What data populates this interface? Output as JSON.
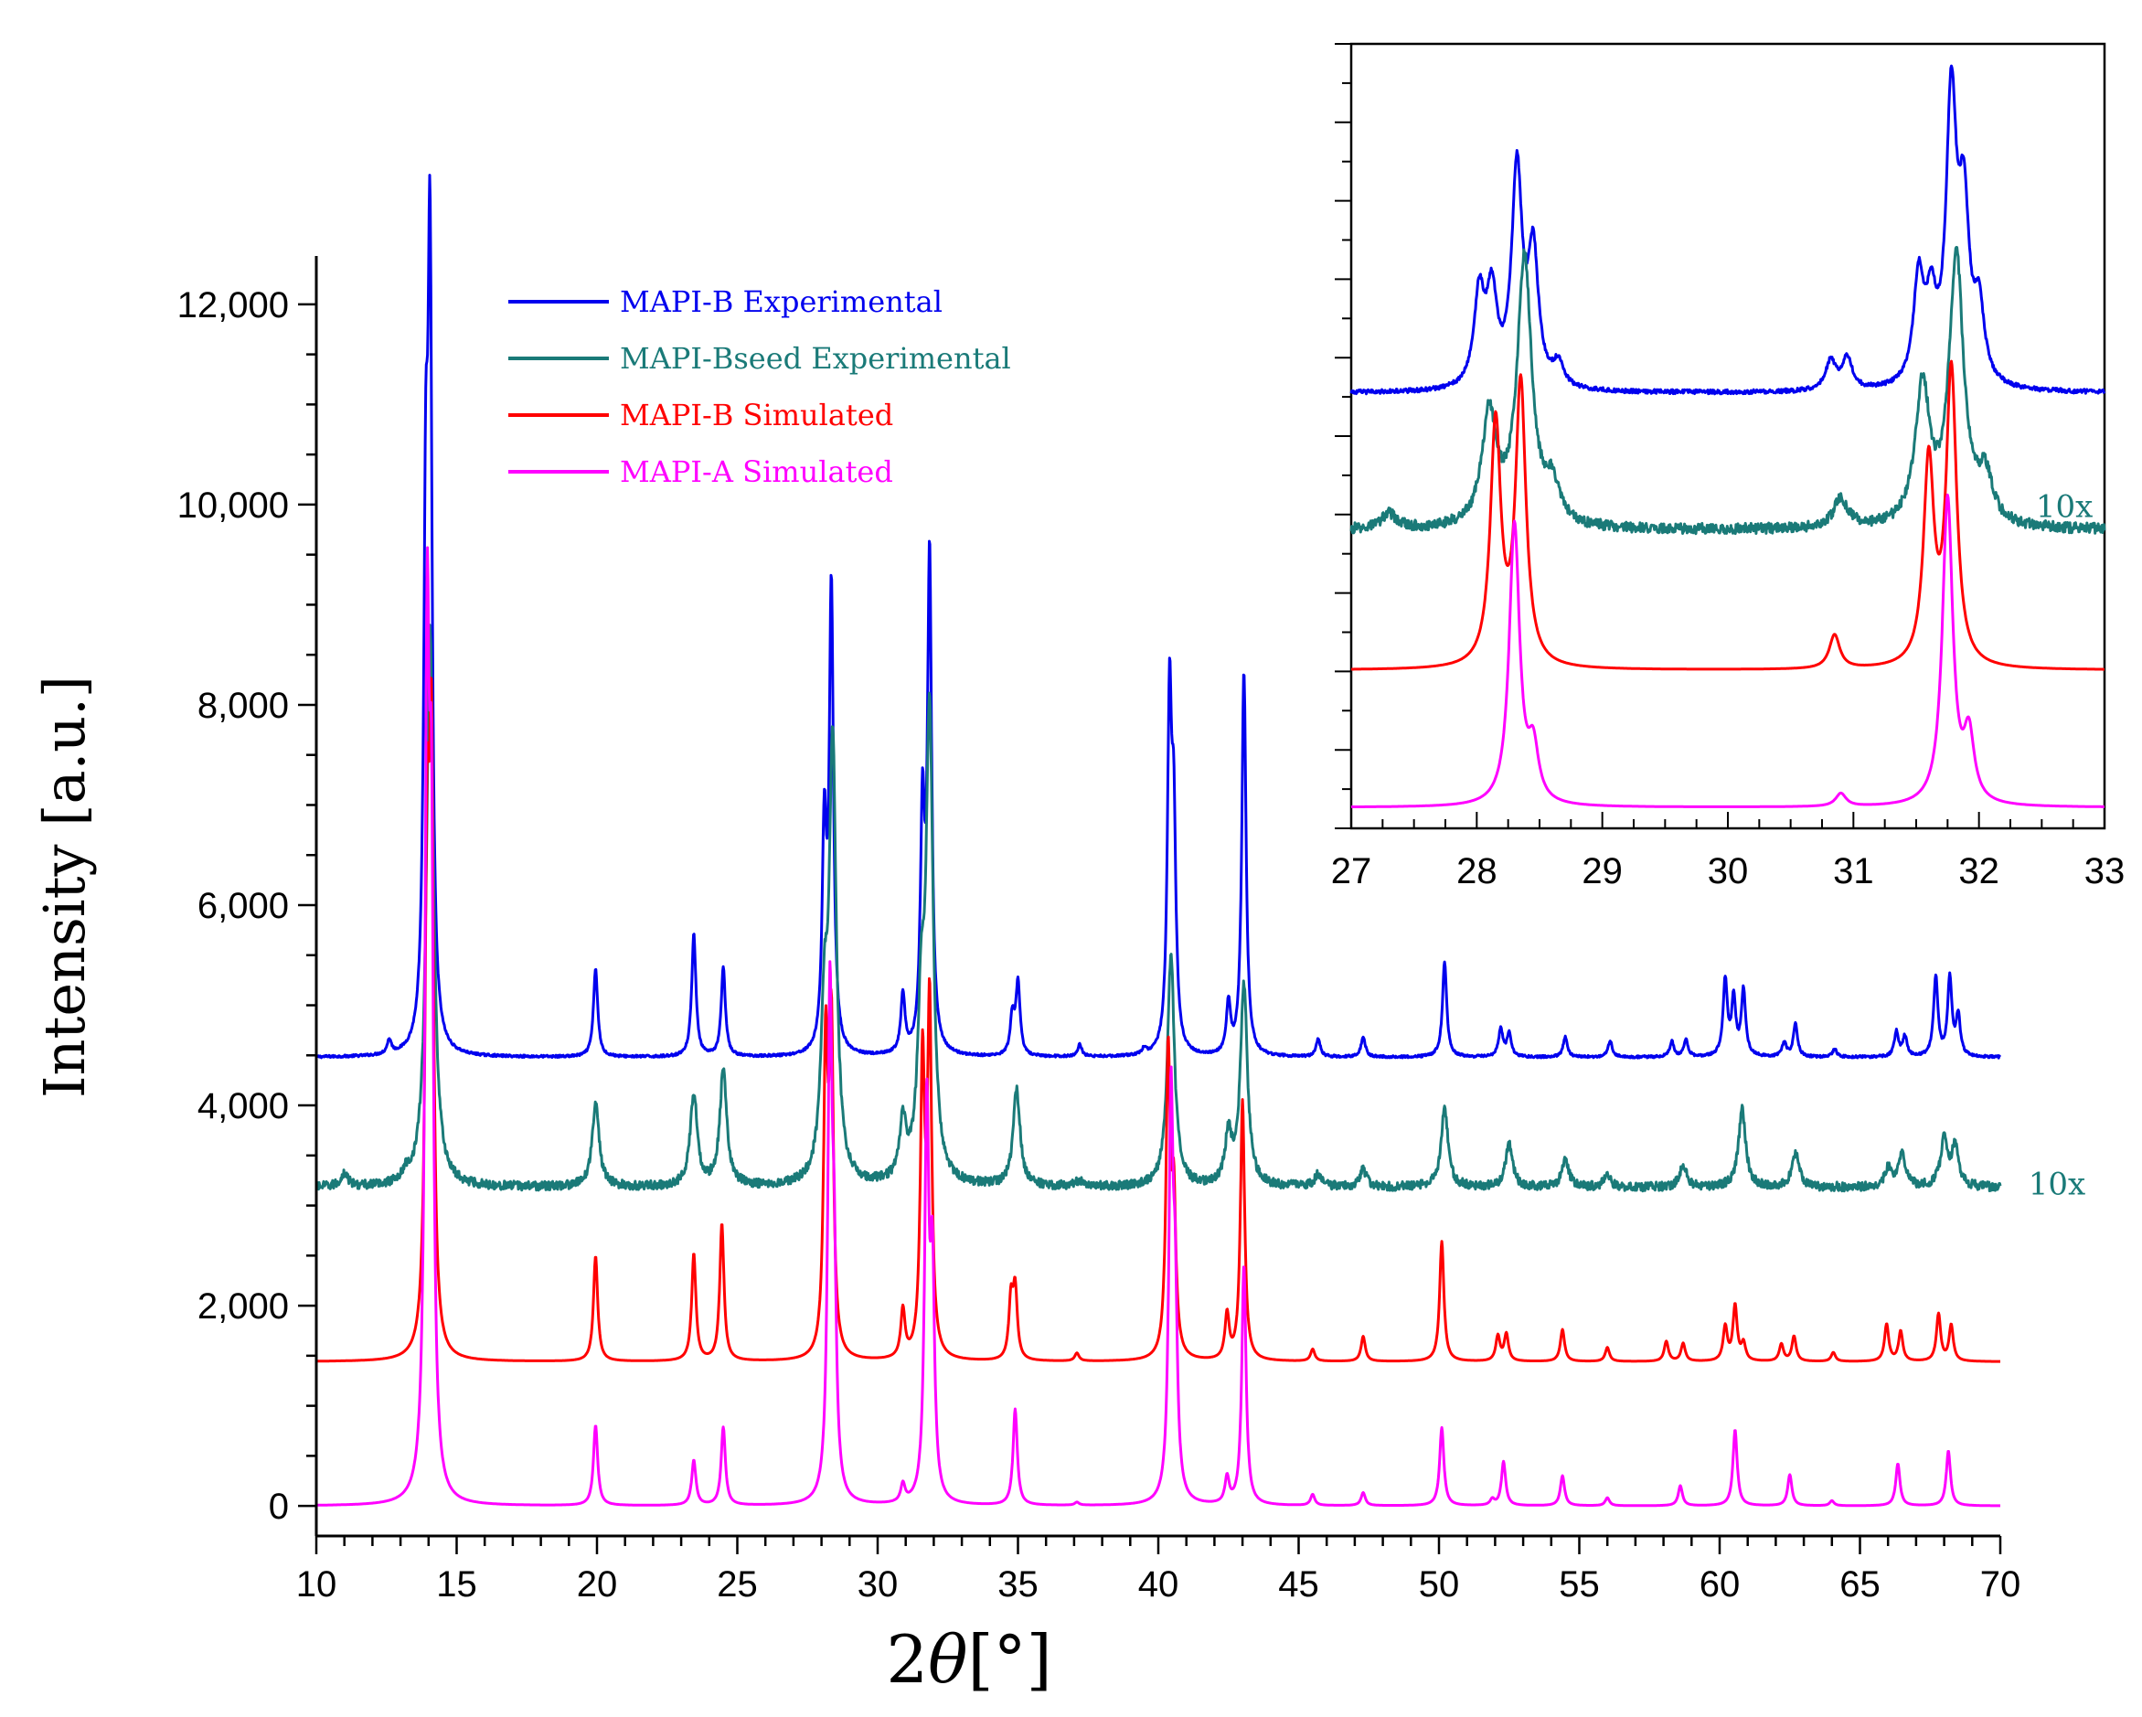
{
  "chart_data": [
    {
      "type": "line",
      "role": "main",
      "xlabel_prefix": "2",
      "xlabel_symbol": "θ",
      "xlabel_unit": "[°]",
      "ylabel": "Intensity [a.u.]",
      "xlim": [
        10,
        70
      ],
      "ylim": [
        -300,
        12300
      ],
      "x_ticks": [
        10,
        15,
        20,
        25,
        30,
        35,
        40,
        45,
        50,
        55,
        60,
        65,
        70
      ],
      "x_tick_labels": [
        "10",
        "15",
        "20",
        "25",
        "30",
        "35",
        "40",
        "45",
        "50",
        "55",
        "60",
        "65",
        "70"
      ],
      "y_ticks": [
        0,
        2000,
        4000,
        6000,
        8000,
        10000,
        12000
      ],
      "y_tick_labels": [
        "0",
        "2,000",
        "4,000",
        "6,000",
        "8,000",
        "10,000",
        "12,000"
      ],
      "annotation": "10x",
      "annotation_at": [
        71,
        3200
      ],
      "series": [
        {
          "name": "MAPI-B Experimental",
          "color": "#0000ee",
          "baseline": 4480,
          "noise": 12,
          "width": 0.09,
          "peaks": [
            [
              12.6,
              140
            ],
            [
              13.9,
              4700
            ],
            [
              14.05,
              7520
            ],
            [
              19.95,
              880
            ],
            [
              23.45,
              1230
            ],
            [
              24.5,
              880
            ],
            [
              28.1,
              2150
            ],
            [
              28.35,
              4600
            ],
            [
              30.9,
              580
            ],
            [
              31.6,
              2300
            ],
            [
              31.85,
              4920
            ],
            [
              34.8,
              380
            ],
            [
              35.0,
              720
            ],
            [
              37.2,
              120
            ],
            [
              39.5,
              60
            ],
            [
              40.4,
              3420
            ],
            [
              40.55,
              2100
            ],
            [
              42.5,
              500
            ],
            [
              43.05,
              3850
            ],
            [
              45.7,
              180
            ],
            [
              47.3,
              200
            ],
            [
              50.2,
              950
            ],
            [
              52.2,
              280
            ],
            [
              52.5,
              240
            ],
            [
              54.5,
              200
            ],
            [
              56.1,
              160
            ],
            [
              58.3,
              150
            ],
            [
              58.8,
              170
            ],
            [
              60.2,
              760
            ],
            [
              60.5,
              560
            ],
            [
              60.85,
              660
            ],
            [
              62.3,
              140
            ],
            [
              62.7,
              330
            ],
            [
              64.1,
              80
            ],
            [
              66.3,
              250
            ],
            [
              66.6,
              200
            ],
            [
              67.7,
              800
            ],
            [
              68.2,
              780
            ],
            [
              68.5,
              400
            ]
          ]
        },
        {
          "name": "MAPI-Bseed Experimental",
          "color": "#1a7a78",
          "baseline": 3180,
          "noise": 45,
          "width": 0.15,
          "peaks": [
            [
              11,
              130
            ],
            [
              13.2,
              80
            ],
            [
              14.05,
              5600
            ],
            [
              19.95,
              830
            ],
            [
              23.45,
              930
            ],
            [
              24.5,
              1150
            ],
            [
              28.1,
              1500
            ],
            [
              28.4,
              4300
            ],
            [
              30.9,
              560
            ],
            [
              31.55,
              1500
            ],
            [
              31.85,
              4600
            ],
            [
              34.95,
              960
            ],
            [
              37.2,
              60
            ],
            [
              40.45,
              2300
            ],
            [
              42.5,
              480
            ],
            [
              43.05,
              2000
            ],
            [
              45.7,
              130
            ],
            [
              47.3,
              170
            ],
            [
              50.2,
              780
            ],
            [
              52.5,
              420
            ],
            [
              54.5,
              270
            ],
            [
              56.0,
              120
            ],
            [
              58.7,
              220
            ],
            [
              60.8,
              780
            ],
            [
              62.7,
              340
            ],
            [
              66.0,
              180
            ],
            [
              66.5,
              320
            ],
            [
              68.0,
              480
            ],
            [
              68.4,
              400
            ]
          ]
        },
        {
          "name": "MAPI-B Simulated",
          "color": "#ff0000",
          "baseline": 1440,
          "noise": 0,
          "width": 0.09,
          "peaks": [
            [
              13.95,
              4600
            ],
            [
              14.1,
              5600
            ],
            [
              19.95,
              1050
            ],
            [
              23.45,
              1070
            ],
            [
              24.45,
              1370
            ],
            [
              28.15,
              3000
            ],
            [
              28.35,
              3200
            ],
            [
              30.9,
              480
            ],
            [
              31.6,
              2900
            ],
            [
              31.85,
              3500
            ],
            [
              34.75,
              580
            ],
            [
              34.9,
              680
            ],
            [
              37.1,
              80
            ],
            [
              40.35,
              3000
            ],
            [
              40.55,
              1500
            ],
            [
              42.45,
              450
            ],
            [
              43.0,
              2600
            ],
            [
              45.5,
              120
            ],
            [
              47.3,
              250
            ],
            [
              50.1,
              1200
            ],
            [
              52.1,
              250
            ],
            [
              52.4,
              270
            ],
            [
              54.4,
              320
            ],
            [
              56.0,
              140
            ],
            [
              58.1,
              200
            ],
            [
              58.7,
              180
            ],
            [
              60.2,
              340
            ],
            [
              60.55,
              550
            ],
            [
              60.85,
              170
            ],
            [
              62.2,
              170
            ],
            [
              62.65,
              250
            ],
            [
              64.05,
              90
            ],
            [
              65.95,
              370
            ],
            [
              66.45,
              300
            ],
            [
              67.8,
              470
            ],
            [
              68.25,
              360
            ]
          ]
        },
        {
          "name": "MAPI-A Simulated",
          "color": "#ff00ff",
          "baseline": 0,
          "noise": 0,
          "width": 0.09,
          "peaks": [
            [
              13.95,
              8000
            ],
            [
              14.1,
              5700
            ],
            [
              19.95,
              800
            ],
            [
              23.45,
              450
            ],
            [
              24.5,
              780
            ],
            [
              28.3,
              4900
            ],
            [
              28.45,
              2000
            ],
            [
              30.9,
              180
            ],
            [
              31.75,
              3900
            ],
            [
              31.95,
              2200
            ],
            [
              34.9,
              960
            ],
            [
              37.1,
              30
            ],
            [
              40.45,
              3900
            ],
            [
              40.6,
              1800
            ],
            [
              42.45,
              260
            ],
            [
              43.05,
              2400
            ],
            [
              45.5,
              110
            ],
            [
              47.3,
              130
            ],
            [
              50.1,
              780
            ],
            [
              51.9,
              60
            ],
            [
              52.3,
              440
            ],
            [
              54.4,
              300
            ],
            [
              56.0,
              80
            ],
            [
              58.6,
              200
            ],
            [
              60.55,
              760
            ],
            [
              62.5,
              310
            ],
            [
              64.0,
              50
            ],
            [
              66.35,
              420
            ],
            [
              68.15,
              550
            ]
          ]
        }
      ]
    },
    {
      "type": "line",
      "role": "inset",
      "xlim": [
        27,
        33
      ],
      "ylim": [
        0,
        600
      ],
      "x_ticks": [
        27,
        28,
        29,
        30,
        31,
        32,
        33
      ],
      "x_tick_labels": [
        "27",
        "28",
        "29",
        "30",
        "31",
        "32",
        "33"
      ],
      "annotation": "10x",
      "annotation_at": [
        33.05,
        245
      ],
      "series": [
        {
          "name": "MAPI-B Experimental",
          "color": "#0000ee",
          "baseline": 333,
          "noise": 1.6,
          "width": 0.05,
          "peaks": [
            [
              28.02,
              70
            ],
            [
              28.12,
              68
            ],
            [
              28.32,
              165
            ],
            [
              28.45,
              100
            ],
            [
              28.65,
              18
            ],
            [
              30.82,
              22
            ],
            [
              30.95,
              24
            ],
            [
              31.52,
              80
            ],
            [
              31.62,
              55
            ],
            [
              31.78,
              215
            ],
            [
              31.88,
              125
            ],
            [
              32.0,
              55
            ]
          ]
        },
        {
          "name": "MAPI-Bseed Experimental",
          "color": "#1a7a78",
          "baseline": 228,
          "noise": 4,
          "width": 0.07,
          "peaks": [
            [
              27.3,
              12
            ],
            [
              28.1,
              85
            ],
            [
              28.38,
              205
            ],
            [
              28.6,
              28
            ],
            [
              30.9,
              22
            ],
            [
              31.55,
              105
            ],
            [
              31.82,
              205
            ],
            [
              32.05,
              35
            ]
          ]
        },
        {
          "name": "MAPI-B Simulated",
          "color": "#ff0000",
          "baseline": 121,
          "noise": 0,
          "width": 0.05,
          "peaks": [
            [
              28.15,
              185
            ],
            [
              28.35,
              215
            ],
            [
              30.85,
              26
            ],
            [
              31.6,
              155
            ],
            [
              31.78,
              225
            ]
          ]
        },
        {
          "name": "MAPI-A Simulated",
          "color": "#ff00ff",
          "baseline": 16,
          "noise": 0,
          "width": 0.05,
          "peaks": [
            [
              28.3,
              215
            ],
            [
              28.45,
              40
            ],
            [
              30.9,
              10
            ],
            [
              31.75,
              235
            ],
            [
              31.92,
              50
            ]
          ]
        }
      ]
    }
  ]
}
